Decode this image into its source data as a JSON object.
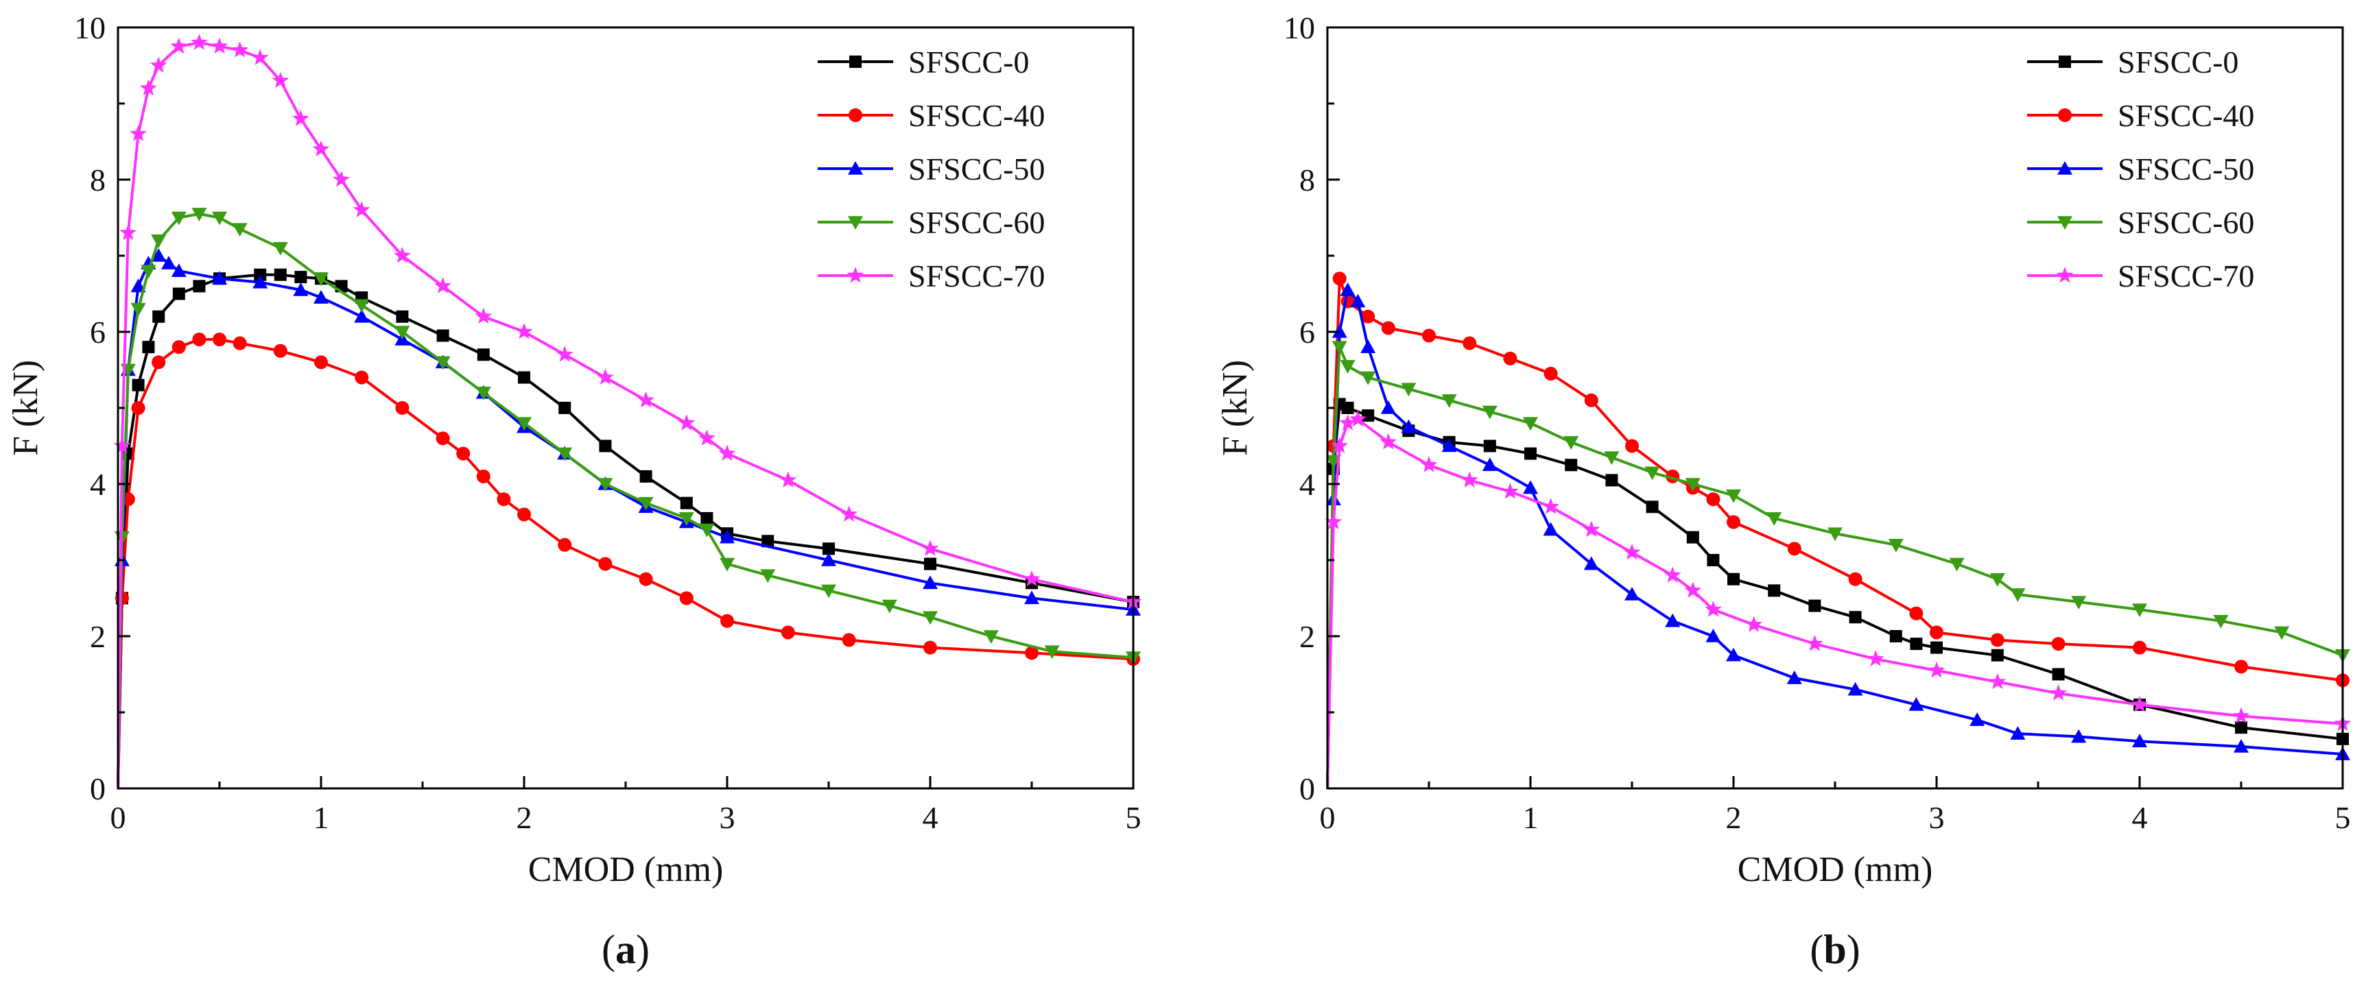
{
  "chart_data": [
    {
      "type": "line",
      "panel_label": "(a)",
      "xlabel": "CMOD (mm)",
      "ylabel": "F (kN)",
      "xlim": [
        0,
        5
      ],
      "ylim": [
        0,
        10
      ],
      "xticks": [
        0,
        1,
        2,
        3,
        4,
        5
      ],
      "yticks": [
        0,
        2,
        4,
        6,
        8,
        10
      ],
      "grid": false,
      "legend": "top-right",
      "series": [
        {
          "name": "SFSCC-0",
          "color": "#000000",
          "marker": "square",
          "x": [
            0,
            0.02,
            0.05,
            0.1,
            0.15,
            0.2,
            0.3,
            0.4,
            0.5,
            0.7,
            0.8,
            0.9,
            1.0,
            1.1,
            1.2,
            1.4,
            1.6,
            1.8,
            2.0,
            2.2,
            2.4,
            2.6,
            2.8,
            2.9,
            3.0,
            3.2,
            3.5,
            4.0,
            4.5,
            5.0
          ],
          "y": [
            0,
            2.5,
            4.4,
            5.3,
            5.8,
            6.2,
            6.5,
            6.6,
            6.7,
            6.75,
            6.75,
            6.72,
            6.7,
            6.6,
            6.45,
            6.2,
            5.95,
            5.7,
            5.4,
            5.0,
            4.5,
            4.1,
            3.75,
            3.55,
            3.35,
            3.25,
            3.15,
            2.95,
            2.7,
            2.45
          ]
        },
        {
          "name": "SFSCC-40",
          "color": "#ff0000",
          "marker": "circle",
          "x": [
            0,
            0.02,
            0.05,
            0.1,
            0.2,
            0.3,
            0.4,
            0.5,
            0.6,
            0.8,
            1.0,
            1.2,
            1.4,
            1.6,
            1.7,
            1.8,
            1.9,
            2.0,
            2.2,
            2.4,
            2.6,
            2.8,
            3.0,
            3.3,
            3.6,
            4.0,
            4.5,
            5.0
          ],
          "y": [
            0,
            2.5,
            3.8,
            5.0,
            5.6,
            5.8,
            5.9,
            5.9,
            5.85,
            5.75,
            5.6,
            5.4,
            5.0,
            4.6,
            4.4,
            4.1,
            3.8,
            3.6,
            3.2,
            2.95,
            2.75,
            2.5,
            2.2,
            2.05,
            1.95,
            1.85,
            1.78,
            1.7
          ]
        },
        {
          "name": "SFSCC-50",
          "color": "#0000ff",
          "marker": "triangle-up",
          "x": [
            0,
            0.02,
            0.05,
            0.1,
            0.15,
            0.2,
            0.25,
            0.3,
            0.5,
            0.7,
            0.9,
            1.0,
            1.2,
            1.4,
            1.6,
            1.8,
            2.0,
            2.2,
            2.4,
            2.6,
            2.8,
            3.0,
            3.5,
            4.0,
            4.5,
            5.0
          ],
          "y": [
            0,
            3.0,
            5.5,
            6.6,
            6.9,
            7.0,
            6.9,
            6.8,
            6.7,
            6.65,
            6.55,
            6.45,
            6.2,
            5.9,
            5.6,
            5.2,
            4.75,
            4.4,
            4.0,
            3.7,
            3.5,
            3.3,
            3.0,
            2.7,
            2.5,
            2.35
          ]
        },
        {
          "name": "SFSCC-60",
          "color": "#3a9c13",
          "marker": "triangle-down",
          "x": [
            0,
            0.02,
            0.05,
            0.1,
            0.15,
            0.2,
            0.3,
            0.4,
            0.5,
            0.6,
            0.8,
            1.0,
            1.2,
            1.4,
            1.6,
            1.8,
            2.0,
            2.2,
            2.4,
            2.6,
            2.8,
            2.9,
            3.0,
            3.2,
            3.5,
            3.8,
            4.0,
            4.3,
            4.6,
            5.0
          ],
          "y": [
            0,
            3.3,
            5.5,
            6.3,
            6.8,
            7.2,
            7.5,
            7.55,
            7.5,
            7.35,
            7.1,
            6.7,
            6.35,
            6.0,
            5.6,
            5.2,
            4.8,
            4.4,
            4.0,
            3.75,
            3.55,
            3.4,
            2.95,
            2.8,
            2.6,
            2.4,
            2.25,
            2.0,
            1.8,
            1.72
          ]
        },
        {
          "name": "SFSCC-70",
          "color": "#ff33ff",
          "marker": "star",
          "x": [
            0,
            0.02,
            0.05,
            0.1,
            0.15,
            0.2,
            0.3,
            0.4,
            0.5,
            0.6,
            0.7,
            0.8,
            0.9,
            1.0,
            1.1,
            1.2,
            1.4,
            1.6,
            1.8,
            2.0,
            2.2,
            2.4,
            2.6,
            2.8,
            2.9,
            3.0,
            3.3,
            3.6,
            4.0,
            4.5,
            5.0
          ],
          "y": [
            0,
            4.5,
            7.3,
            8.6,
            9.2,
            9.5,
            9.75,
            9.8,
            9.75,
            9.7,
            9.6,
            9.3,
            8.8,
            8.4,
            8.0,
            7.6,
            7.0,
            6.6,
            6.2,
            6.0,
            5.7,
            5.4,
            5.1,
            4.8,
            4.6,
            4.4,
            4.05,
            3.6,
            3.15,
            2.75,
            2.45
          ]
        }
      ]
    },
    {
      "type": "line",
      "panel_label": "(b)",
      "xlabel": "CMOD (mm)",
      "ylabel": "F (kN)",
      "xlim": [
        0,
        5
      ],
      "ylim": [
        0,
        10
      ],
      "xticks": [
        0,
        1,
        2,
        3,
        4,
        5
      ],
      "yticks": [
        0,
        2,
        4,
        6,
        8,
        10
      ],
      "grid": false,
      "legend": "top-right",
      "series": [
        {
          "name": "SFSCC-0",
          "color": "#000000",
          "marker": "square",
          "x": [
            0,
            0.03,
            0.06,
            0.1,
            0.2,
            0.4,
            0.6,
            0.8,
            1.0,
            1.2,
            1.4,
            1.6,
            1.8,
            1.9,
            2.0,
            2.2,
            2.4,
            2.6,
            2.8,
            2.9,
            3.0,
            3.3,
            3.6,
            4.0,
            4.5,
            5.0
          ],
          "y": [
            0,
            4.2,
            5.05,
            5.0,
            4.9,
            4.7,
            4.55,
            4.5,
            4.4,
            4.25,
            4.05,
            3.7,
            3.3,
            3.0,
            2.75,
            2.6,
            2.4,
            2.25,
            2.0,
            1.9,
            1.85,
            1.75,
            1.5,
            1.1,
            0.8,
            0.65
          ]
        },
        {
          "name": "SFSCC-40",
          "color": "#ff0000",
          "marker": "circle",
          "x": [
            0,
            0.03,
            0.06,
            0.1,
            0.2,
            0.3,
            0.5,
            0.7,
            0.9,
            1.1,
            1.3,
            1.5,
            1.7,
            1.8,
            1.9,
            2.0,
            2.3,
            2.6,
            2.9,
            3.0,
            3.3,
            3.6,
            4.0,
            4.5,
            5.0
          ],
          "y": [
            0,
            4.5,
            6.7,
            6.4,
            6.2,
            6.05,
            5.95,
            5.85,
            5.65,
            5.45,
            5.1,
            4.5,
            4.1,
            3.95,
            3.8,
            3.5,
            3.15,
            2.75,
            2.3,
            2.05,
            1.95,
            1.9,
            1.85,
            1.6,
            1.42
          ]
        },
        {
          "name": "SFSCC-50",
          "color": "#0000ff",
          "marker": "triangle-up",
          "x": [
            0,
            0.03,
            0.06,
            0.1,
            0.15,
            0.2,
            0.3,
            0.4,
            0.6,
            0.8,
            1.0,
            1.1,
            1.3,
            1.5,
            1.7,
            1.9,
            2.0,
            2.3,
            2.6,
            2.9,
            3.2,
            3.4,
            3.7,
            4.0,
            4.5,
            5.0
          ],
          "y": [
            0,
            3.8,
            6.0,
            6.55,
            6.4,
            5.8,
            5.0,
            4.75,
            4.5,
            4.25,
            3.95,
            3.4,
            2.95,
            2.55,
            2.2,
            2.0,
            1.75,
            1.45,
            1.3,
            1.1,
            0.9,
            0.72,
            0.68,
            0.62,
            0.55,
            0.45
          ]
        },
        {
          "name": "SFSCC-60",
          "color": "#3a9c13",
          "marker": "triangle-down",
          "x": [
            0,
            0.03,
            0.06,
            0.1,
            0.2,
            0.4,
            0.6,
            0.8,
            1.0,
            1.2,
            1.4,
            1.6,
            1.8,
            2.0,
            2.2,
            2.5,
            2.8,
            3.1,
            3.3,
            3.4,
            3.7,
            4.0,
            4.4,
            4.7,
            5.0
          ],
          "y": [
            0,
            4.3,
            5.8,
            5.55,
            5.4,
            5.25,
            5.1,
            4.95,
            4.8,
            4.55,
            4.35,
            4.15,
            4.0,
            3.85,
            3.55,
            3.35,
            3.2,
            2.95,
            2.75,
            2.55,
            2.45,
            2.35,
            2.2,
            2.05,
            1.75
          ]
        },
        {
          "name": "SFSCC-70",
          "color": "#ff33ff",
          "marker": "star",
          "x": [
            0,
            0.03,
            0.06,
            0.1,
            0.15,
            0.3,
            0.5,
            0.7,
            0.9,
            1.1,
            1.3,
            1.5,
            1.7,
            1.8,
            1.9,
            2.1,
            2.4,
            2.7,
            3.0,
            3.3,
            3.6,
            4.0,
            4.5,
            5.0
          ],
          "y": [
            0,
            3.5,
            4.5,
            4.8,
            4.85,
            4.55,
            4.25,
            4.05,
            3.9,
            3.7,
            3.4,
            3.1,
            2.8,
            2.6,
            2.35,
            2.15,
            1.9,
            1.7,
            1.55,
            1.4,
            1.25,
            1.1,
            0.95,
            0.85
          ]
        }
      ]
    }
  ]
}
